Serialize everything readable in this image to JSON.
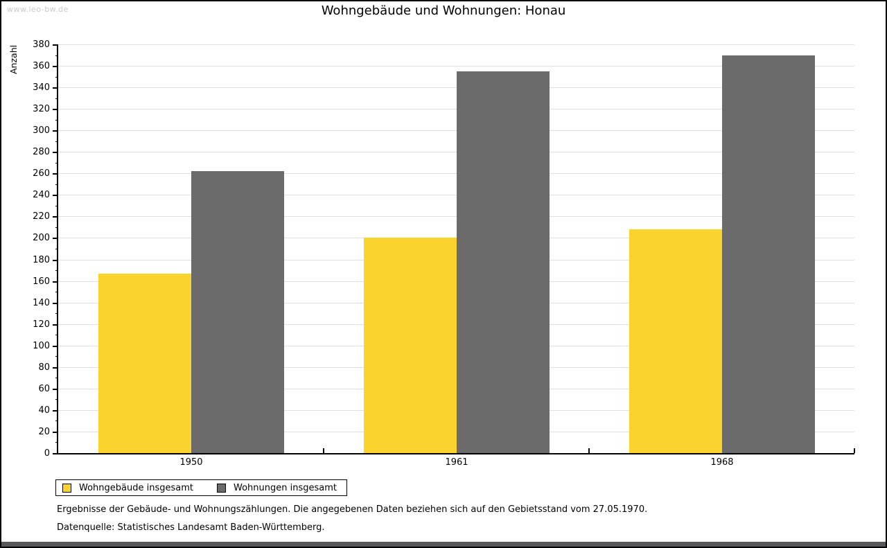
{
  "window": {
    "watermark": "www.leo-bw.de"
  },
  "chart_data": {
    "type": "bar",
    "title": "Wohngebäude und Wohnungen: Honau",
    "xlabel": "",
    "ylabel": "Anzahl",
    "categories": [
      "1950",
      "1961",
      "1968"
    ],
    "series": [
      {
        "name": "Wohngebäude insgesamt",
        "color": "#fbd32f",
        "values": [
          167,
          200,
          208
        ]
      },
      {
        "name": "Wohnungen insgesamt",
        "color": "#6b6b6b",
        "values": [
          262,
          355,
          370
        ]
      }
    ],
    "ylim": [
      0,
      380
    ],
    "y_major_step": 20,
    "y_minor_step": 10,
    "grid": true,
    "legend_position": "bottom-left"
  },
  "footer": {
    "note1": "Ergebnisse der Gebäude- und Wohnungszählungen. Die angegebenen Daten beziehen sich auf den Gebietsstand vom 27.05.1970.",
    "note2": "Datenquelle: Statistisches Landesamt Baden-Württemberg."
  },
  "colors": {
    "grid": "#e0e0e0",
    "axis": "#000000",
    "watermark": "#c9c9c9",
    "bottom_strip": "#58585a"
  }
}
